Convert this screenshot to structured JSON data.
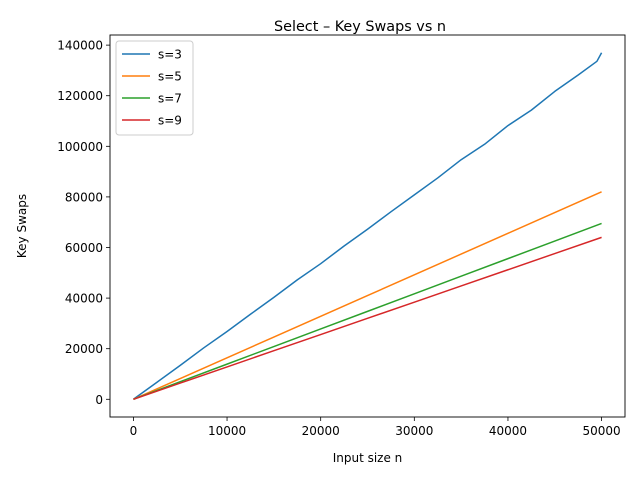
{
  "chart_data": {
    "type": "line",
    "title": "Select – Key Swaps vs n",
    "xlabel": "Input size n",
    "ylabel": "Key Swaps",
    "xlim": [
      -2500,
      52500
    ],
    "ylim": [
      -7000,
      144000
    ],
    "xticks": [
      0,
      10000,
      20000,
      30000,
      40000,
      50000
    ],
    "xtick_labels": [
      "0",
      "10000",
      "20000",
      "30000",
      "40000",
      "50000"
    ],
    "yticks": [
      0,
      20000,
      40000,
      60000,
      80000,
      100000,
      120000,
      140000
    ],
    "ytick_labels": [
      "0",
      "20000",
      "40000",
      "60000",
      "80000",
      "100000",
      "120000",
      "140000"
    ],
    "grid": false,
    "legend": "top-left",
    "series": [
      {
        "name": "s=3",
        "color": "#1f77b4",
        "x": [
          0,
          2500,
          5000,
          7500,
          10000,
          12500,
          15000,
          17500,
          20000,
          22500,
          25000,
          27500,
          30000,
          32500,
          35000,
          37500,
          40000,
          42500,
          45000,
          47500,
          49500,
          50000
        ],
        "y": [
          0,
          6700,
          13400,
          20300,
          26800,
          33600,
          40300,
          47200,
          53600,
          60600,
          67200,
          74100,
          80800,
          87500,
          94700,
          100800,
          108200,
          114300,
          121700,
          128200,
          133600,
          137000
        ]
      },
      {
        "name": "s=5",
        "color": "#ff7f0e",
        "x": [
          0,
          5000,
          10000,
          15000,
          20000,
          25000,
          30000,
          35000,
          40000,
          45000,
          50000
        ],
        "y": [
          0,
          8200,
          16400,
          24600,
          32800,
          41000,
          49200,
          57400,
          65600,
          73800,
          82000
        ]
      },
      {
        "name": "s=7",
        "color": "#2ca02c",
        "x": [
          0,
          5000,
          10000,
          15000,
          20000,
          25000,
          30000,
          35000,
          40000,
          45000,
          50000
        ],
        "y": [
          0,
          6950,
          13900,
          20850,
          27800,
          34750,
          41700,
          48650,
          55600,
          62550,
          69500
        ]
      },
      {
        "name": "s=9",
        "color": "#d62728",
        "x": [
          0,
          5000,
          10000,
          15000,
          20000,
          25000,
          30000,
          35000,
          40000,
          45000,
          50000
        ],
        "y": [
          0,
          6400,
          12800,
          19200,
          25600,
          32000,
          38400,
          44800,
          51200,
          57600,
          64000
        ]
      }
    ]
  }
}
